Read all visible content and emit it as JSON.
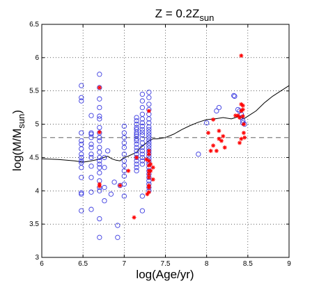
{
  "chart_data": {
    "type": "scatter",
    "title": {
      "main": "Z = 0.2Z",
      "sub": "sun"
    },
    "xlabel": "log(Age/yr)",
    "ylabel": {
      "main": "log(M/M",
      "sub": "sun",
      "close": ")"
    },
    "xlim": [
      6,
      9
    ],
    "ylim": [
      3,
      6.5
    ],
    "xticks": [
      6,
      6.5,
      7,
      7.5,
      8,
      8.5,
      9
    ],
    "yticks": [
      3,
      3.5,
      4,
      4.5,
      5,
      5.5,
      6,
      6.5
    ],
    "xtick_labels": [
      "6",
      "6.5",
      "7",
      "7.5",
      "8",
      "8.5",
      "9"
    ],
    "ytick_labels": [
      "3",
      "3.5",
      "4",
      "4.5",
      "5",
      "5.5",
      "6",
      "6.5"
    ],
    "grid": true,
    "colors": {
      "circles": "#3a3ae0",
      "stars": "#ff0000",
      "line": "#000000",
      "dashed": "#808080"
    },
    "reference_line": {
      "y": 4.8,
      "style": "dashed"
    },
    "series": [
      {
        "marker": "circle",
        "x": [
          6.48,
          6.48,
          6.48,
          6.48,
          6.48,
          6.48,
          6.48,
          6.48,
          6.48,
          6.48,
          6.48,
          6.48,
          6.48,
          6.48,
          6.48,
          6.48,
          6.6,
          6.6,
          6.6,
          6.6,
          6.6,
          6.6,
          6.6,
          6.6,
          6.6,
          6.6,
          6.6,
          6.6,
          6.7,
          6.7,
          6.7,
          6.7,
          6.7,
          6.7,
          6.7,
          6.7,
          6.7,
          6.7,
          6.7,
          6.7,
          6.7,
          6.7,
          6.7,
          6.7,
          6.7,
          6.7,
          6.7,
          6.7,
          6.7,
          6.7,
          6.76,
          6.76,
          6.76,
          6.76,
          6.8,
          6.84,
          6.88,
          6.92,
          6.92,
          6.95,
          7.0,
          7.0,
          7.0,
          7.0,
          7.0,
          7.0,
          7.0,
          7.0,
          7.0,
          7.0,
          7.0,
          7.0,
          7.15,
          7.15,
          7.15,
          7.15,
          7.15,
          7.15,
          7.15,
          7.15,
          7.15,
          7.15,
          7.15,
          7.15,
          7.15,
          7.15,
          7.15,
          7.15,
          7.15,
          7.15,
          7.15,
          7.22,
          7.22,
          7.22,
          7.22,
          7.22,
          7.22,
          7.22,
          7.22,
          7.22,
          7.22,
          7.22,
          7.22,
          7.22,
          7.22,
          7.22,
          7.22,
          7.22,
          7.22,
          7.22,
          7.22,
          7.3,
          7.3,
          7.3,
          7.3,
          7.3,
          7.3,
          7.3,
          7.3,
          7.3,
          7.3,
          7.3,
          7.3,
          7.3,
          7.3,
          7.3,
          7.3,
          7.3,
          7.3,
          7.3,
          7.3,
          7.3,
          7.3,
          7.3,
          7.3,
          7.3,
          7.3,
          7.3,
          7.3,
          7.3,
          7.3,
          7.9,
          8.0,
          8.12,
          8.15,
          8.33,
          8.34,
          8.38,
          8.4,
          8.42,
          8.42,
          8.44,
          8.44,
          8.46
        ],
        "y": [
          5.58,
          5.4,
          5.35,
          4.87,
          4.75,
          4.7,
          4.63,
          4.55,
          4.5,
          4.45,
          4.42,
          4.35,
          4.2,
          3.97,
          3.95,
          3.7,
          5.13,
          4.87,
          4.85,
          4.8,
          4.7,
          4.65,
          4.55,
          4.5,
          4.37,
          4.2,
          3.98,
          3.72,
          5.75,
          5.55,
          5.38,
          5.25,
          5.12,
          5.08,
          4.95,
          4.87,
          4.8,
          4.75,
          4.65,
          4.58,
          4.5,
          4.45,
          4.4,
          4.35,
          4.27,
          4.15,
          4.05,
          4.0,
          3.58,
          3.3,
          4.5,
          4.35,
          4.05,
          3.85,
          4.6,
          3.95,
          4.13,
          3.48,
          3.3,
          4.08,
          4.97,
          4.87,
          4.8,
          4.72,
          4.65,
          4.55,
          4.45,
          4.38,
          4.3,
          4.22,
          4.1,
          3.92,
          5.1,
          5.05,
          5.0,
          4.95,
          4.92,
          4.88,
          4.85,
          4.82,
          4.78,
          4.75,
          4.7,
          4.65,
          4.6,
          4.55,
          4.5,
          4.45,
          4.4,
          4.35,
          4.3,
          5.45,
          5.35,
          5.25,
          5.15,
          5.08,
          5.02,
          4.97,
          4.92,
          4.88,
          4.84,
          4.78,
          4.72,
          4.65,
          4.6,
          4.55,
          4.5,
          4.45,
          4.4,
          3.92,
          3.7,
          5.48,
          5.4,
          5.3,
          5.22,
          5.15,
          5.08,
          5.02,
          4.96,
          4.92,
          4.88,
          4.84,
          4.8,
          4.76,
          4.72,
          4.68,
          4.64,
          4.6,
          4.56,
          4.52,
          4.48,
          4.44,
          4.4,
          4.35,
          4.3,
          4.25,
          4.2,
          4.15,
          4.1,
          4.05,
          4.0,
          4.55,
          5.02,
          5.2,
          5.25,
          5.43,
          5.42,
          5.22,
          5.2,
          5.15,
          5.1,
          5.05,
          5.02,
          5.0
        ]
      },
      {
        "marker": "star",
        "x": [
          6.7,
          6.7,
          6.7,
          6.7,
          6.95,
          7.05,
          7.12,
          7.15,
          7.27,
          7.28,
          7.3,
          7.3,
          7.3,
          7.3,
          7.3,
          7.3,
          7.3,
          7.3,
          7.3,
          7.3,
          7.3,
          7.32,
          7.32,
          7.35,
          7.35,
          8.02,
          8.05,
          8.08,
          8.08,
          8.12,
          8.15,
          8.15,
          8.18,
          8.2,
          8.22,
          8.35,
          8.38,
          8.4,
          8.4,
          8.42,
          8.42,
          8.42,
          8.42,
          8.44,
          8.44,
          8.44,
          8.45,
          8.45,
          8.46
        ],
        "y": [
          5.55,
          4.88,
          4.1,
          4.07,
          4.08,
          4.3,
          3.6,
          4.5,
          4.47,
          3.95,
          5.2,
          4.6,
          4.55,
          4.45,
          4.38,
          4.3,
          4.25,
          4.2,
          4.08,
          4.05,
          3.98,
          4.4,
          4.3,
          4.35,
          4.17,
          4.87,
          4.6,
          5.07,
          4.68,
          4.6,
          4.9,
          4.78,
          4.75,
          4.82,
          4.65,
          5.13,
          5.13,
          5.1,
          4.72,
          6.03,
          5.3,
          5.2,
          4.78,
          5.28,
          5.22,
          5.12,
          5.0,
          4.87,
          4.8
        ]
      },
      {
        "marker": "line",
        "x": [
          6,
          6.2,
          6.4,
          6.5,
          6.6,
          6.68,
          6.75,
          6.8,
          6.85,
          6.9,
          6.95,
          7.0,
          7.05,
          7.1,
          7.15,
          7.2,
          7.25,
          7.3,
          7.35,
          7.4,
          7.45,
          7.5,
          7.6,
          7.7,
          7.8,
          7.9,
          8.0,
          8.1,
          8.2,
          8.3,
          8.4,
          8.45,
          8.5,
          8.6,
          8.7,
          8.8,
          8.9,
          9.0
        ],
        "y": [
          4.48,
          4.47,
          4.45,
          4.43,
          4.45,
          4.47,
          4.5,
          4.52,
          4.48,
          4.46,
          4.45,
          4.5,
          4.52,
          4.55,
          4.58,
          4.65,
          4.7,
          4.75,
          4.78,
          4.78,
          4.79,
          4.8,
          4.85,
          4.92,
          4.98,
          5.03,
          5.07,
          5.08,
          5.1,
          5.08,
          5.12,
          5.08,
          5.12,
          5.2,
          5.32,
          5.42,
          5.5,
          5.58
        ]
      }
    ]
  }
}
